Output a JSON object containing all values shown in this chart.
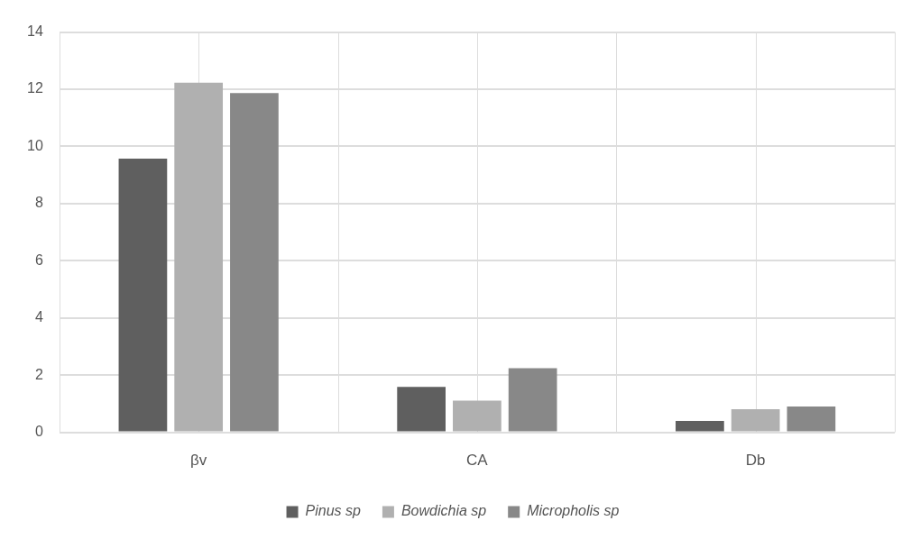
{
  "chart_data": {
    "type": "bar",
    "categories": [
      "βv",
      "CA",
      "Db"
    ],
    "series": [
      {
        "name": "Pinus sp",
        "color": "#5f5f5f",
        "values": [
          9.57,
          1.59,
          0.4
        ]
      },
      {
        "name": "Bowdichia sp",
        "color": "#b0b0b0",
        "values": [
          12.23,
          1.11,
          0.81
        ]
      },
      {
        "name": "Micropholis sp",
        "color": "#888888",
        "values": [
          11.87,
          2.24,
          0.9
        ]
      }
    ],
    "ylim": [
      0,
      14
    ],
    "yticks": [
      0,
      2,
      4,
      6,
      8,
      10,
      12,
      14
    ],
    "grid": true,
    "legend": "bottom"
  }
}
